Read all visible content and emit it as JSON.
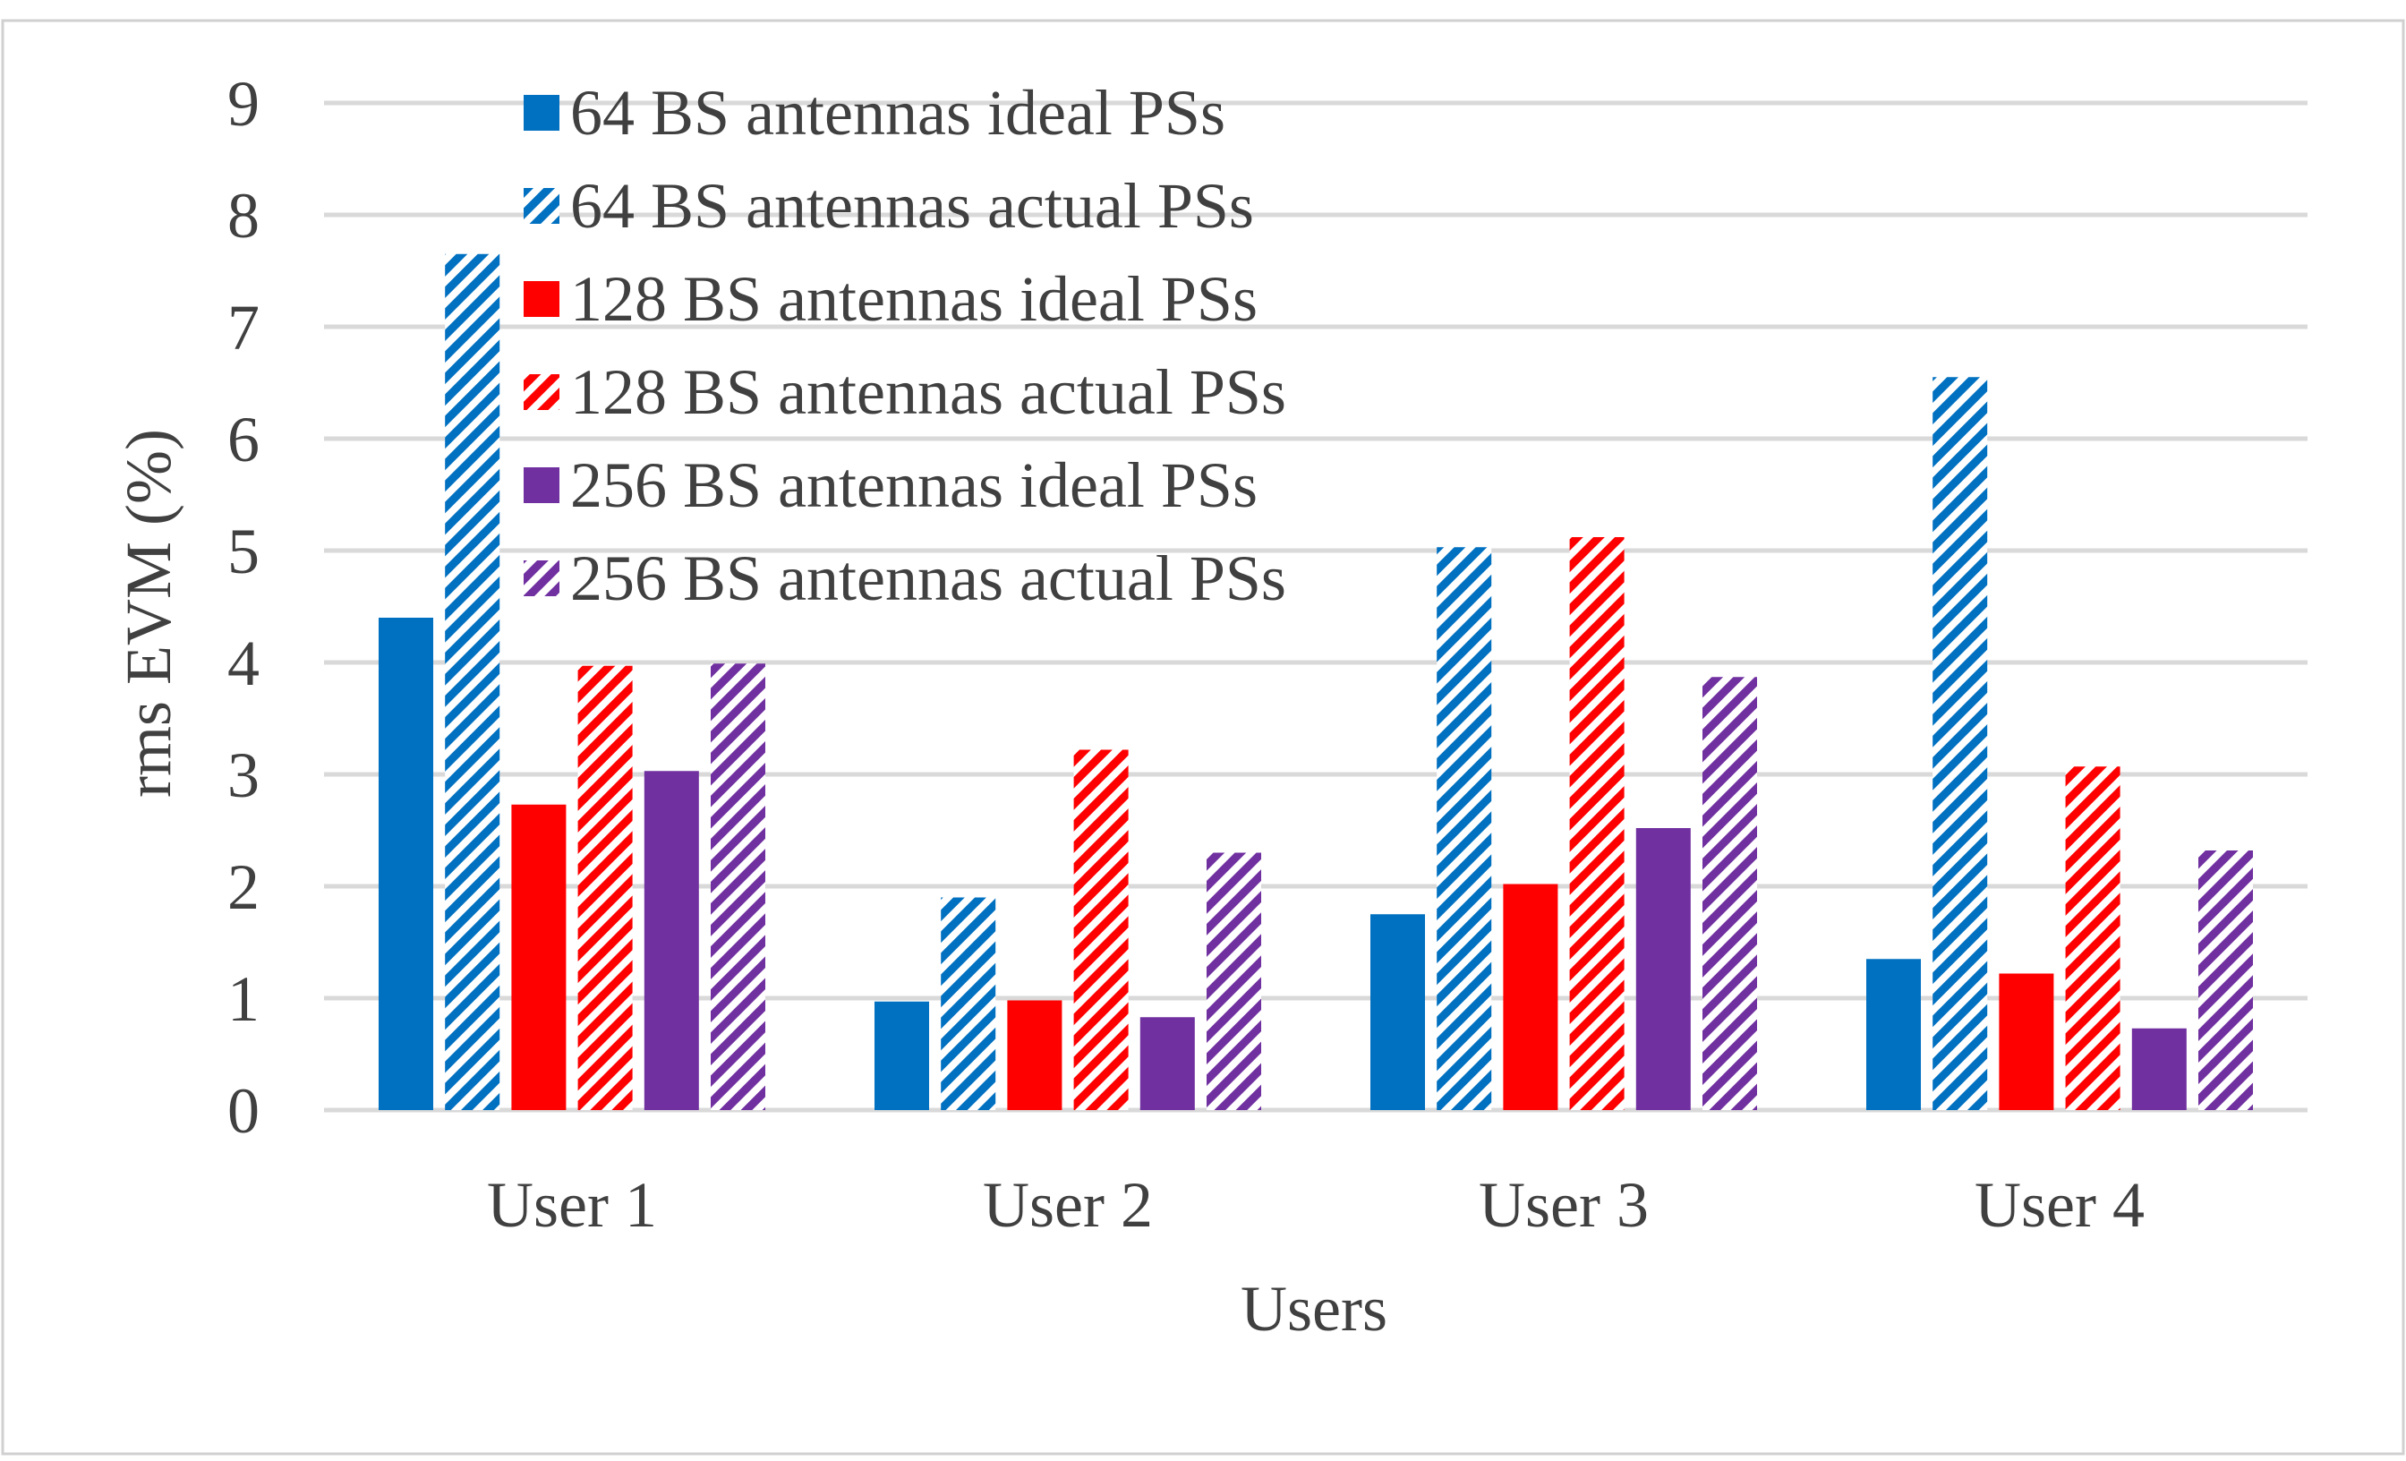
{
  "chart_data": {
    "type": "bar",
    "title": "",
    "xlabel": "Users",
    "ylabel": "rms EVM (%)",
    "ylim": [
      0,
      9
    ],
    "yticks": [
      0,
      1,
      2,
      3,
      4,
      5,
      6,
      7,
      8,
      9
    ],
    "grid": true,
    "legend_position": "top-left",
    "categories": [
      "User 1",
      "User 2",
      "User 3",
      "User 4"
    ],
    "series": [
      {
        "name": "64 BS antennas ideal PSs",
        "color": "#0070C0",
        "pattern": "solid",
        "values": [
          4.4,
          0.97,
          1.75,
          1.35
        ]
      },
      {
        "name": "64 BS antennas actual PSs",
        "color": "#0070C0",
        "pattern": "hatched",
        "values": [
          7.65,
          1.9,
          5.03,
          6.55
        ]
      },
      {
        "name": "128 BS antennas ideal PSs",
        "color": "#FF0000",
        "pattern": "solid",
        "values": [
          2.73,
          0.98,
          2.02,
          1.22
        ]
      },
      {
        "name": "128 BS antennas actual PSs",
        "color": "#FF0000",
        "pattern": "hatched",
        "values": [
          3.97,
          3.22,
          5.12,
          3.07
        ]
      },
      {
        "name": "256 BS antennas ideal PSs",
        "color": "#7030A0",
        "pattern": "solid",
        "values": [
          3.03,
          0.83,
          2.52,
          0.73
        ]
      },
      {
        "name": "256 BS antennas actual PSs",
        "color": "#7030A0",
        "pattern": "hatched",
        "values": [
          3.99,
          2.3,
          3.87,
          2.32
        ]
      }
    ]
  }
}
